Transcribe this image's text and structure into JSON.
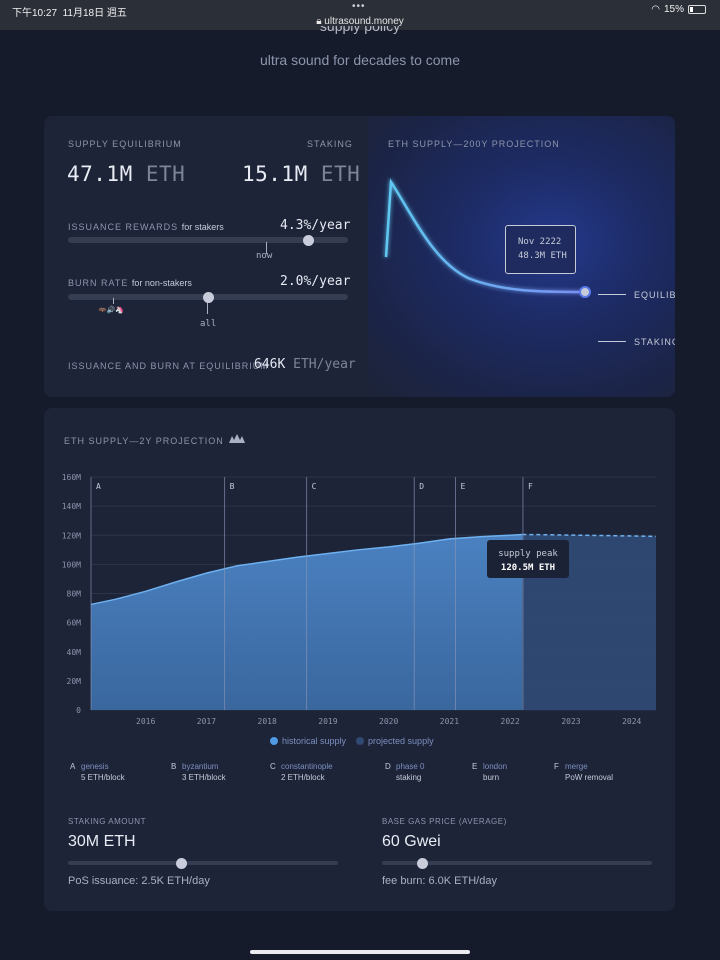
{
  "status_bar": {
    "time": "下午10:27",
    "date": "11月18日 週五",
    "url": "ultrasound.money",
    "battery": "15%"
  },
  "hero": {
    "cut_title": "supply policy",
    "subtitle": "ultra sound for decades to come"
  },
  "equilibrium": {
    "supply_label": "SUPPLY EQUILIBRIUM",
    "supply_value": "47.1M",
    "supply_unit": "ETH",
    "staking_label": "STAKING",
    "staking_value": "15.1M",
    "staking_unit": "ETH",
    "issuance_label": "ISSUANCE REWARDS",
    "issuance_sub": "for stakers",
    "issuance_rate": "4.3%/year",
    "issuance_slider": 0.86,
    "issuance_tick": "now",
    "burn_label": "BURN RATE",
    "burn_sub": "for non-stakers",
    "burn_rate": "2.0%/year",
    "burn_slider": 0.5,
    "burn_tick": "all",
    "burn_tick_icons": "🦇🔊🦄",
    "footer_label": "ISSUANCE AND BURN AT EQUILIBRIUM",
    "footer_value": "646K",
    "footer_unit": "ETH/year"
  },
  "projection200": {
    "title": "ETH SUPPLY—200Y PROJECTION",
    "tooltip_date": "Nov 2222",
    "tooltip_value": "48.3M ETH",
    "legend_equilibrium": "EQUILIBRIUM",
    "legend_staking": "STAKING",
    "line_color": "#5ec8f0"
  },
  "projection2y": {
    "title": "ETH SUPPLY—2Y PROJECTION",
    "title_icon": "bat-speaker-icon",
    "peak_label": "supply peak",
    "peak_value": "120.5M ETH",
    "legend_historical": "historical supply",
    "legend_projected": "projected supply",
    "colors": {
      "historical": "#4f8fd6",
      "projected": "#2e4a74"
    }
  },
  "chart_data": {
    "type": "area",
    "title": "ETH SUPPLY—2Y PROJECTION",
    "ylim": [
      0,
      160
    ],
    "yticks": [
      "0",
      "20M",
      "40M",
      "60M",
      "80M",
      "100M",
      "120M",
      "140M",
      "160M"
    ],
    "xlim": [
      2015.6,
      2024.9
    ],
    "xticks": [
      "2016",
      "2017",
      "2018",
      "2019",
      "2020",
      "2021",
      "2022",
      "2023",
      "2024"
    ],
    "series": [
      {
        "name": "historical supply",
        "x": [
          2015.6,
          2016.0,
          2016.5,
          2017.0,
          2017.5,
          2018.0,
          2018.5,
          2019.0,
          2019.5,
          2020.0,
          2020.5,
          2021.0,
          2021.5,
          2022.0,
          2022.5,
          2022.7
        ],
        "values": [
          72.5,
          76,
          81.5,
          88,
          94,
          99,
          102,
          105,
          107.5,
          110,
          112,
          114.5,
          117.5,
          119,
          120,
          120.5
        ]
      },
      {
        "name": "projected supply",
        "x": [
          2022.7,
          2023.0,
          2023.5,
          2024.0,
          2024.5,
          2024.9
        ],
        "values": [
          120.5,
          120.4,
          120.1,
          119.8,
          119.5,
          119.2
        ]
      }
    ],
    "events": [
      {
        "letter": "A",
        "year": 2015.6,
        "name": "genesis",
        "desc": "5 ETH/block"
      },
      {
        "letter": "B",
        "year": 2017.8,
        "name": "byzantium",
        "desc": "3 ETH/block"
      },
      {
        "letter": "C",
        "year": 2019.15,
        "name": "constantinople",
        "desc": "2 ETH/block"
      },
      {
        "letter": "D",
        "year": 2020.92,
        "name": "phase 0",
        "desc": "staking"
      },
      {
        "letter": "E",
        "year": 2021.6,
        "name": "london",
        "desc": "burn"
      },
      {
        "letter": "F",
        "year": 2022.71,
        "name": "merge",
        "desc": "PoW removal"
      }
    ]
  },
  "controls": {
    "staking_label": "STAKING AMOUNT",
    "staking_value": "30M ETH",
    "staking_slider": 0.42,
    "staking_sub": "PoS issuance: 2.5K ETH/day",
    "gas_label": "BASE GAS PRICE (AVERAGE)",
    "gas_value": "60 Gwei",
    "gas_slider": 0.15,
    "gas_sub": "fee burn: 6.0K ETH/day"
  }
}
